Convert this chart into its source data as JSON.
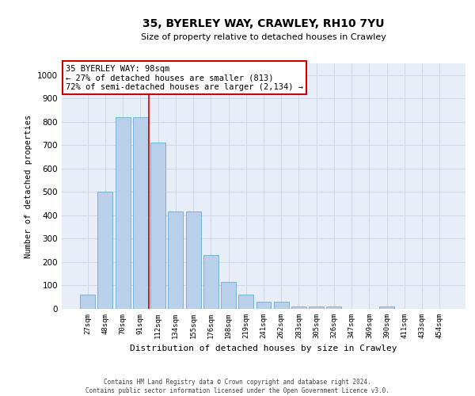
{
  "title": "35, BYERLEY WAY, CRAWLEY, RH10 7YU",
  "subtitle": "Size of property relative to detached houses in Crawley",
  "xlabel": "Distribution of detached houses by size in Crawley",
  "ylabel": "Number of detached properties",
  "categories": [
    "27sqm",
    "48sqm",
    "70sqm",
    "91sqm",
    "112sqm",
    "134sqm",
    "155sqm",
    "176sqm",
    "198sqm",
    "219sqm",
    "241sqm",
    "262sqm",
    "283sqm",
    "305sqm",
    "326sqm",
    "347sqm",
    "369sqm",
    "390sqm",
    "411sqm",
    "433sqm",
    "454sqm"
  ],
  "values": [
    60,
    500,
    820,
    820,
    710,
    415,
    415,
    230,
    115,
    60,
    30,
    30,
    10,
    10,
    10,
    0,
    0,
    10,
    0,
    0,
    0
  ],
  "bar_color": "#b8d0ea",
  "bar_edge_color": "#6aaad4",
  "grid_color": "#d0d8e8",
  "bg_color": "#e8eef8",
  "vline_x": 3.5,
  "vline_color": "#cc0000",
  "annotation_text": "35 BYERLEY WAY: 98sqm\n← 27% of detached houses are smaller (813)\n72% of semi-detached houses are larger (2,134) →",
  "annotation_box_color": "#cc0000",
  "ylim": [
    0,
    1050
  ],
  "yticks": [
    0,
    100,
    200,
    300,
    400,
    500,
    600,
    700,
    800,
    900,
    1000
  ],
  "footer_line1": "Contains HM Land Registry data © Crown copyright and database right 2024.",
  "footer_line2": "Contains public sector information licensed under the Open Government Licence v3.0."
}
